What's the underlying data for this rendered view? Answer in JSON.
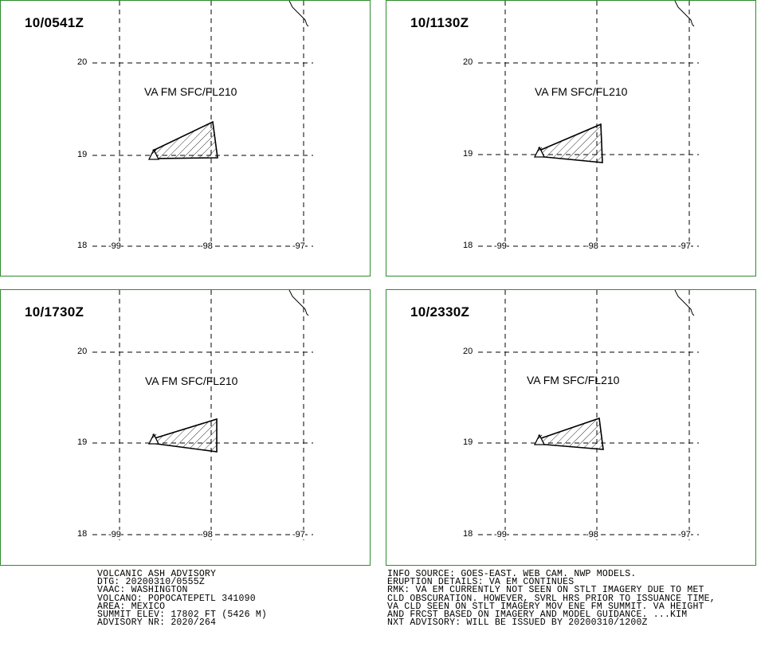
{
  "panels": [
    {
      "time": "10/0541Z",
      "va_label": "VA FM SFC/FL210",
      "latitudes": [
        "20",
        "19",
        "18"
      ],
      "longitudes": [
        "-99",
        "-98",
        "-97"
      ]
    },
    {
      "time": "10/1130Z",
      "va_label": "VA FM SFC/FL210",
      "latitudes": [
        "20",
        "19",
        "18"
      ],
      "longitudes": [
        "-99",
        "-98",
        "-97"
      ]
    },
    {
      "time": "10/1730Z",
      "va_label": "VA FM SFC/FL210",
      "latitudes": [
        "20",
        "19",
        "18"
      ],
      "longitudes": [
        "-99",
        "-98",
        "-97"
      ]
    },
    {
      "time": "10/2330Z",
      "va_label": "VA FM SFC/FL210",
      "latitudes": [
        "20",
        "19",
        "18"
      ],
      "longitudes": [
        "-99",
        "-98",
        "-97"
      ]
    }
  ],
  "advisory_left": [
    "VOLCANIC ASH ADVISORY",
    "DTG: 20200310/0555Z",
    "VAAC: WASHINGTON",
    "VOLCANO: POPOCATEPETL 341090",
    "AREA: MEXICO",
    "SUMMIT ELEV: 17802 FT (5426 M)",
    "ADVISORY NR: 2020/264"
  ],
  "advisory_right": [
    "INFO SOURCE: GOES-EAST. WEB CAM. NWP MODELS.",
    "ERUPTION DETAILS: VA EM CONTINUES",
    "RMK: VA EM CURRENTLY NOT SEEN ON STLT IMAGERY DUE TO MET",
    "CLD OBSCURATION. HOWEVER, SVRL HRS PRIOR TO ISSUANCE TIME,",
    "VA CLD SEEN ON STLT IMAGERY MOV ENE FM SUMMIT. VA HEIGHT",
    "AND FRCST BASED ON IMAGERY AND MODEL GUIDANCE. ...KIM",
    "NXT ADVISORY: WILL BE ISSUED BY 20200310/1200Z"
  ],
  "colors": {
    "panel_border": "#2e8b2e",
    "ink": "#000000"
  }
}
